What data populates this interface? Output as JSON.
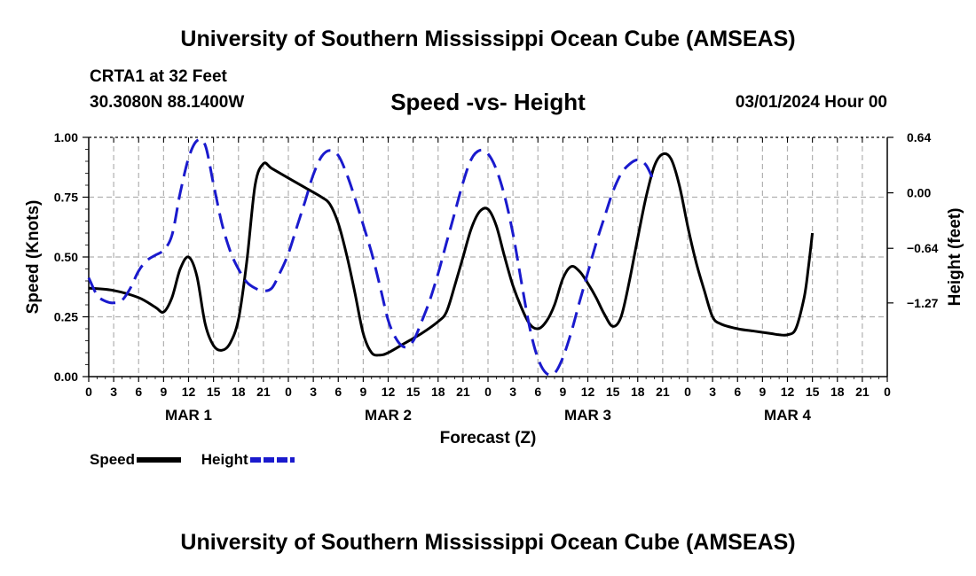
{
  "page": {
    "title_top": "University of Southern Mississippi Ocean Cube (AMSEAS)",
    "title_bottom": "University of Southern Mississippi Ocean Cube (AMSEAS)",
    "station": "CRTA1 at 32 Feet",
    "coords": "30.3080N  88.1400W",
    "datetime": "03/01/2024 Hour 00"
  },
  "legend": {
    "speed_label": "Speed",
    "height_label": "Height"
  },
  "colors": {
    "speed": "#000000",
    "height": "#1a1acd",
    "grid": "#b0b0b0"
  },
  "chart_data": {
    "type": "line",
    "title": "Speed -vs- Height",
    "xlabel": "Forecast (Z)",
    "ylabel": "Speed (Knots)",
    "y2label": "Height (feet)",
    "x_unit": "hours from 03/01/2024 00Z",
    "xlim": [
      0,
      96
    ],
    "ylim": [
      0,
      1
    ],
    "y2lim": [
      -2.12,
      0.64
    ],
    "x_ticks": [
      0,
      3,
      6,
      9,
      12,
      15,
      18,
      21,
      24,
      27,
      30,
      33,
      36,
      39,
      42,
      45,
      48,
      51,
      54,
      57,
      60,
      63,
      66,
      69,
      72,
      75,
      78,
      81,
      84,
      87,
      90,
      93,
      96
    ],
    "x_tick_labels": [
      "0",
      "3",
      "6",
      "9",
      "12",
      "15",
      "18",
      "21",
      "0",
      "3",
      "6",
      "9",
      "12",
      "15",
      "18",
      "21",
      "0",
      "3",
      "6",
      "9",
      "12",
      "15",
      "18",
      "21",
      "0",
      "3",
      "6",
      "9",
      "12",
      "15",
      "18",
      "21",
      "0"
    ],
    "day_labels": [
      {
        "x": 12,
        "label": "MAR 1"
      },
      {
        "x": 36,
        "label": "MAR 2"
      },
      {
        "x": 60,
        "label": "MAR 3"
      },
      {
        "x": 84,
        "label": "MAR 4"
      }
    ],
    "y_ticks": [
      0,
      0.25,
      0.5,
      0.75,
      1.0
    ],
    "y_tick_labels": [
      "0.00",
      "0.25",
      "0.50",
      "0.75",
      "1.00"
    ],
    "y2_ticks": [
      0.64,
      0.0,
      -0.64,
      -1.27
    ],
    "y2_tick_labels": [
      "0.64",
      "0.00",
      "−0.64",
      "−1.27"
    ],
    "series": [
      {
        "name": "Speed",
        "axis": "left",
        "style": "solid",
        "points": [
          [
            0,
            0.37
          ],
          [
            3,
            0.36
          ],
          [
            6,
            0.33
          ],
          [
            8,
            0.29
          ],
          [
            9,
            0.27
          ],
          [
            10,
            0.33
          ],
          [
            11,
            0.45
          ],
          [
            12,
            0.5
          ],
          [
            13,
            0.42
          ],
          [
            14,
            0.22
          ],
          [
            15,
            0.13
          ],
          [
            16,
            0.11
          ],
          [
            17,
            0.14
          ],
          [
            18,
            0.24
          ],
          [
            19,
            0.48
          ],
          [
            20,
            0.8
          ],
          [
            21,
            0.89
          ],
          [
            22,
            0.87
          ],
          [
            24,
            0.83
          ],
          [
            26,
            0.79
          ],
          [
            28,
            0.75
          ],
          [
            29,
            0.72
          ],
          [
            30,
            0.64
          ],
          [
            31,
            0.51
          ],
          [
            32,
            0.35
          ],
          [
            33,
            0.18
          ],
          [
            34,
            0.1
          ],
          [
            35,
            0.09
          ],
          [
            36,
            0.1
          ],
          [
            38,
            0.14
          ],
          [
            40,
            0.18
          ],
          [
            42,
            0.23
          ],
          [
            43,
            0.27
          ],
          [
            44,
            0.38
          ],
          [
            45,
            0.5
          ],
          [
            46,
            0.62
          ],
          [
            47,
            0.69
          ],
          [
            48,
            0.7
          ],
          [
            49,
            0.63
          ],
          [
            50,
            0.5
          ],
          [
            51,
            0.38
          ],
          [
            52,
            0.29
          ],
          [
            53,
            0.22
          ],
          [
            54,
            0.2
          ],
          [
            55,
            0.23
          ],
          [
            56,
            0.3
          ],
          [
            57,
            0.41
          ],
          [
            58,
            0.46
          ],
          [
            59,
            0.44
          ],
          [
            60,
            0.39
          ],
          [
            61,
            0.33
          ],
          [
            62,
            0.26
          ],
          [
            63,
            0.21
          ],
          [
            64,
            0.25
          ],
          [
            65,
            0.4
          ],
          [
            66,
            0.58
          ],
          [
            67,
            0.75
          ],
          [
            68,
            0.88
          ],
          [
            69,
            0.93
          ],
          [
            70,
            0.91
          ],
          [
            71,
            0.8
          ],
          [
            72,
            0.63
          ],
          [
            73,
            0.48
          ],
          [
            74,
            0.36
          ],
          [
            75,
            0.25
          ],
          [
            76,
            0.22
          ],
          [
            78,
            0.2
          ],
          [
            80,
            0.19
          ],
          [
            82,
            0.18
          ],
          [
            83,
            0.175
          ],
          [
            84,
            0.175
          ],
          [
            85,
            0.2
          ],
          [
            86,
            0.33
          ],
          [
            86.5,
            0.45
          ],
          [
            87,
            0.6
          ]
        ]
      },
      {
        "name": "Height",
        "axis": "right",
        "style": "dashed",
        "points": [
          [
            0,
            -0.98
          ],
          [
            1,
            -1.18
          ],
          [
            2,
            -1.25
          ],
          [
            3,
            -1.27
          ],
          [
            4,
            -1.24
          ],
          [
            5,
            -1.1
          ],
          [
            6,
            -0.9
          ],
          [
            7,
            -0.78
          ],
          [
            8,
            -0.72
          ],
          [
            9,
            -0.66
          ],
          [
            10,
            -0.49
          ],
          [
            11,
            0.0
          ],
          [
            12,
            0.4
          ],
          [
            13,
            0.6
          ],
          [
            14,
            0.55
          ],
          [
            15,
            0.1
          ],
          [
            16,
            -0.35
          ],
          [
            17,
            -0.67
          ],
          [
            18,
            -0.88
          ],
          [
            19,
            -1.03
          ],
          [
            20,
            -1.1
          ],
          [
            21,
            -1.13
          ],
          [
            22,
            -1.1
          ],
          [
            23,
            -0.92
          ],
          [
            24,
            -0.7
          ],
          [
            25,
            -0.4
          ],
          [
            26,
            -0.1
          ],
          [
            27,
            0.21
          ],
          [
            28,
            0.42
          ],
          [
            29,
            0.49
          ],
          [
            30,
            0.43
          ],
          [
            31,
            0.22
          ],
          [
            32,
            -0.06
          ],
          [
            33,
            -0.37
          ],
          [
            34,
            -0.69
          ],
          [
            35,
            -1.07
          ],
          [
            36,
            -1.47
          ],
          [
            37,
            -1.69
          ],
          [
            38,
            -1.78
          ],
          [
            39,
            -1.71
          ],
          [
            40,
            -1.49
          ],
          [
            41,
            -1.24
          ],
          [
            42,
            -0.93
          ],
          [
            43,
            -0.58
          ],
          [
            44,
            -0.23
          ],
          [
            45,
            0.12
          ],
          [
            46,
            0.39
          ],
          [
            47,
            0.49
          ],
          [
            48,
            0.45
          ],
          [
            49,
            0.27
          ],
          [
            50,
            -0.04
          ],
          [
            51,
            -0.47
          ],
          [
            52,
            -1.02
          ],
          [
            53,
            -1.55
          ],
          [
            54,
            -1.91
          ],
          [
            55,
            -2.08
          ],
          [
            56,
            -2.08
          ],
          [
            57,
            -1.9
          ],
          [
            58,
            -1.61
          ],
          [
            59,
            -1.26
          ],
          [
            60,
            -0.92
          ],
          [
            61,
            -0.58
          ],
          [
            62,
            -0.28
          ],
          [
            63,
            0.01
          ],
          [
            64,
            0.22
          ],
          [
            65,
            0.33
          ],
          [
            66,
            0.38
          ],
          [
            67,
            0.32
          ],
          [
            68,
            0.12
          ]
        ]
      }
    ]
  }
}
